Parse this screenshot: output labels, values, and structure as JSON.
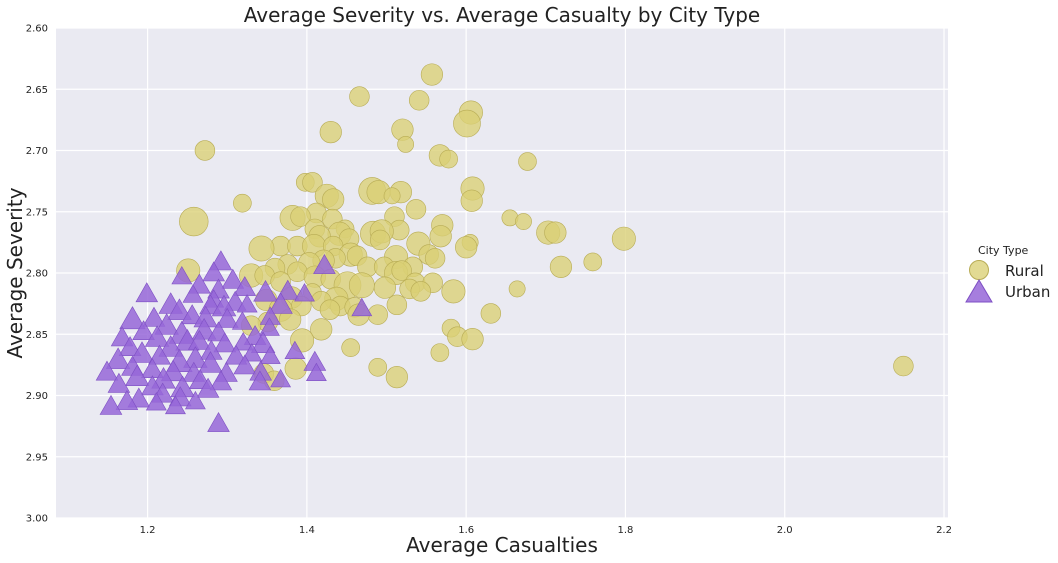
{
  "chart_data": {
    "type": "scatter",
    "title": "Average Severity vs. Average Casualty by City Type",
    "xlabel": "Average Casualties",
    "ylabel": "Average Severity",
    "xlim": [
      1.085,
      2.205
    ],
    "ylim": [
      2.6,
      3.0
    ],
    "y_inverted": true,
    "xticks": [
      1.2,
      1.4,
      1.6,
      1.8,
      2.0,
      2.2
    ],
    "xtick_labels": [
      "1.2",
      "1.4",
      "1.6",
      "1.8",
      "2.0",
      "2.2"
    ],
    "yticks": [
      2.6,
      2.65,
      2.7,
      2.75,
      2.8,
      2.85,
      2.9,
      2.95,
      3.0
    ],
    "ytick_labels": [
      "2.60",
      "2.65",
      "2.70",
      "2.75",
      "2.80",
      "2.85",
      "2.90",
      "2.95",
      "3.00"
    ],
    "grid": true,
    "background": "#eaeaf2",
    "legend": {
      "title": "City Type",
      "placement": "center-right"
    },
    "series": [
      {
        "name": "Rural",
        "marker": "circle",
        "color": "#dacf75",
        "edge_color": "#b8ac55",
        "points": [
          [
            1.557,
            2.638,
            2.4
          ],
          [
            1.466,
            2.656,
            2.2
          ],
          [
            1.541,
            2.659,
            2.2
          ],
          [
            1.606,
            2.669,
            2.6
          ],
          [
            1.601,
            2.678,
            3.0
          ],
          [
            1.43,
            2.685,
            2.4
          ],
          [
            1.52,
            2.683,
            2.4
          ],
          [
            1.524,
            2.695,
            1.8
          ],
          [
            1.272,
            2.7,
            2.2
          ],
          [
            1.567,
            2.704,
            2.4
          ],
          [
            1.578,
            2.707,
            2.0
          ],
          [
            1.677,
            2.709,
            2.0
          ],
          [
            1.398,
            2.726,
            2.0
          ],
          [
            1.407,
            2.726,
            2.2
          ],
          [
            1.608,
            2.731,
            2.6
          ],
          [
            1.482,
            2.733,
            3.0
          ],
          [
            1.49,
            2.734,
            2.6
          ],
          [
            1.518,
            2.734,
            2.4
          ],
          [
            1.425,
            2.737,
            2.6
          ],
          [
            1.433,
            2.74,
            2.4
          ],
          [
            1.507,
            2.737,
            1.8
          ],
          [
            1.607,
            2.741,
            2.4
          ],
          [
            1.319,
            2.743,
            2.0
          ],
          [
            1.537,
            2.748,
            2.2
          ],
          [
            1.412,
            2.751,
            2.2
          ],
          [
            1.382,
            2.755,
            2.8
          ],
          [
            1.392,
            2.754,
            2.2
          ],
          [
            1.432,
            2.756,
            2.2
          ],
          [
            1.51,
            2.754,
            2.2
          ],
          [
            1.655,
            2.755,
            1.8
          ],
          [
            1.258,
            2.758,
            3.2
          ],
          [
            1.672,
            2.758,
            1.8
          ],
          [
            1.57,
            2.761,
            2.4
          ],
          [
            1.41,
            2.764,
            2.2
          ],
          [
            1.448,
            2.764,
            2.0
          ],
          [
            1.516,
            2.765,
            2.2
          ],
          [
            1.483,
            2.768,
            2.8
          ],
          [
            1.494,
            2.766,
            2.6
          ],
          [
            1.703,
            2.767,
            2.6
          ],
          [
            1.712,
            2.767,
            2.4
          ],
          [
            1.441,
            2.768,
            2.6
          ],
          [
            1.416,
            2.77,
            2.4
          ],
          [
            1.568,
            2.77,
            2.4
          ],
          [
            1.453,
            2.772,
            2.2
          ],
          [
            1.492,
            2.773,
            2.2
          ],
          [
            1.798,
            2.772,
            2.6
          ],
          [
            1.605,
            2.775,
            1.8
          ],
          [
            1.367,
            2.778,
            2.2
          ],
          [
            1.388,
            2.778,
            2.2
          ],
          [
            1.409,
            2.778,
            2.6
          ],
          [
            1.433,
            2.778,
            2.2
          ],
          [
            1.54,
            2.776,
            2.6
          ],
          [
            1.6,
            2.779,
            2.4
          ],
          [
            1.343,
            2.78,
            2.8
          ],
          [
            1.553,
            2.785,
            2.2
          ],
          [
            1.561,
            2.788,
            2.2
          ],
          [
            1.512,
            2.787,
            2.6
          ],
          [
            1.455,
            2.785,
            2.6
          ],
          [
            1.463,
            2.786,
            2.2
          ],
          [
            1.436,
            2.788,
            2.2
          ],
          [
            1.421,
            2.79,
            2.4
          ],
          [
            1.403,
            2.792,
            2.4
          ],
          [
            1.376,
            2.793,
            2.2
          ],
          [
            1.36,
            2.796,
            2.2
          ],
          [
            1.476,
            2.795,
            2.2
          ],
          [
            1.497,
            2.795,
            2.2
          ],
          [
            1.533,
            2.795,
            2.2
          ],
          [
            1.719,
            2.795,
            2.4
          ],
          [
            1.759,
            2.791,
            2.0
          ],
          [
            1.251,
            2.798,
            2.6
          ],
          [
            1.388,
            2.799,
            2.2
          ],
          [
            1.512,
            2.8,
            2.6
          ],
          [
            1.519,
            2.798,
            2.2
          ],
          [
            1.33,
            2.802,
            2.6
          ],
          [
            1.347,
            2.802,
            2.2
          ],
          [
            1.41,
            2.803,
            2.4
          ],
          [
            1.43,
            2.805,
            2.2
          ],
          [
            1.367,
            2.807,
            2.2
          ],
          [
            1.536,
            2.808,
            2.2
          ],
          [
            1.558,
            2.808,
            2.2
          ],
          [
            1.451,
            2.81,
            3.0
          ],
          [
            1.469,
            2.81,
            2.8
          ],
          [
            1.498,
            2.812,
            2.4
          ],
          [
            1.529,
            2.813,
            2.2
          ],
          [
            1.584,
            2.815,
            2.6
          ],
          [
            1.543,
            2.815,
            2.2
          ],
          [
            1.664,
            2.813,
            1.8
          ],
          [
            1.407,
            2.816,
            2.0
          ],
          [
            1.381,
            2.82,
            2.4
          ],
          [
            1.437,
            2.821,
            2.6
          ],
          [
            1.349,
            2.822,
            2.4
          ],
          [
            1.418,
            2.823,
            2.2
          ],
          [
            1.442,
            2.827,
            2.2
          ],
          [
            1.393,
            2.827,
            2.2
          ],
          [
            1.46,
            2.828,
            2.2
          ],
          [
            1.513,
            2.826,
            2.2
          ],
          [
            1.367,
            2.83,
            2.6
          ],
          [
            1.429,
            2.83,
            2.2
          ],
          [
            1.489,
            2.834,
            2.2
          ],
          [
            1.465,
            2.834,
            2.4
          ],
          [
            1.631,
            2.833,
            2.2
          ],
          [
            1.379,
            2.838,
            2.4
          ],
          [
            1.351,
            2.84,
            2.2
          ],
          [
            1.33,
            2.843,
            2.2
          ],
          [
            1.418,
            2.846,
            2.4
          ],
          [
            1.581,
            2.845,
            2.0
          ],
          [
            1.589,
            2.852,
            2.2
          ],
          [
            1.608,
            2.854,
            2.4
          ],
          [
            1.394,
            2.855,
            2.6
          ],
          [
            1.455,
            2.861,
            2.0
          ],
          [
            1.567,
            2.865,
            2.0
          ],
          [
            1.386,
            2.878,
            2.4
          ],
          [
            1.489,
            2.877,
            2.0
          ],
          [
            1.513,
            2.885,
            2.4
          ],
          [
            1.346,
            2.882,
            2.2
          ],
          [
            1.359,
            2.888,
            2.2
          ],
          [
            2.149,
            2.876,
            2.2
          ]
        ]
      },
      {
        "name": "Urban",
        "marker": "triangle",
        "color": "#9767d8",
        "edge_color": "#7e4fc4",
        "points": [
          [
            1.292,
            2.791,
            2.4
          ],
          [
            1.422,
            2.794,
            2.4
          ],
          [
            1.283,
            2.8,
            2.4
          ],
          [
            1.243,
            2.803,
            2.2
          ],
          [
            1.307,
            2.806,
            2.4
          ],
          [
            1.265,
            2.81,
            2.4
          ],
          [
            1.199,
            2.817,
            2.4
          ],
          [
            1.289,
            2.814,
            2.4
          ],
          [
            1.322,
            2.812,
            2.4
          ],
          [
            1.348,
            2.816,
            2.6
          ],
          [
            1.376,
            2.815,
            2.4
          ],
          [
            1.397,
            2.817,
            2.2
          ],
          [
            1.257,
            2.818,
            2.2
          ],
          [
            1.229,
            2.826,
            2.6
          ],
          [
            1.283,
            2.822,
            2.2
          ],
          [
            1.31,
            2.824,
            2.4
          ],
          [
            1.24,
            2.831,
            2.6
          ],
          [
            1.279,
            2.827,
            2.4
          ],
          [
            1.296,
            2.828,
            2.6
          ],
          [
            1.325,
            2.826,
            2.2
          ],
          [
            1.367,
            2.826,
            2.6
          ],
          [
            1.354,
            2.836,
            2.2
          ],
          [
            1.469,
            2.829,
            2.2
          ],
          [
            1.181,
            2.838,
            2.8
          ],
          [
            1.208,
            2.837,
            2.4
          ],
          [
            1.256,
            2.835,
            2.4
          ],
          [
            1.273,
            2.837,
            2.6
          ],
          [
            1.3,
            2.838,
            2.4
          ],
          [
            1.319,
            2.84,
            2.2
          ],
          [
            1.353,
            2.845,
            2.2
          ],
          [
            1.224,
            2.843,
            2.6
          ],
          [
            1.271,
            2.847,
            2.6
          ],
          [
            1.289,
            2.849,
            2.4
          ],
          [
            1.243,
            2.85,
            2.8
          ],
          [
            1.195,
            2.848,
            2.4
          ],
          [
            1.335,
            2.852,
            2.4
          ],
          [
            1.168,
            2.853,
            2.4
          ],
          [
            1.212,
            2.853,
            2.6
          ],
          [
            1.25,
            2.856,
            2.6
          ],
          [
            1.265,
            2.856,
            2.4
          ],
          [
            1.297,
            2.858,
            2.4
          ],
          [
            1.32,
            2.857,
            2.2
          ],
          [
            1.345,
            2.858,
            2.6
          ],
          [
            1.178,
            2.861,
            2.4
          ],
          [
            1.229,
            2.861,
            2.6
          ],
          [
            1.28,
            2.864,
            2.4
          ],
          [
            1.193,
            2.866,
            2.6
          ],
          [
            1.215,
            2.868,
            2.4
          ],
          [
            1.26,
            2.87,
            2.6
          ],
          [
            1.311,
            2.868,
            2.4
          ],
          [
            1.331,
            2.866,
            2.2
          ],
          [
            1.354,
            2.868,
            2.2
          ],
          [
            1.385,
            2.864,
            2.2
          ],
          [
            1.163,
            2.871,
            2.6
          ],
          [
            1.24,
            2.873,
            2.8
          ],
          [
            1.279,
            2.874,
            2.6
          ],
          [
            1.322,
            2.876,
            2.4
          ],
          [
            1.181,
            2.877,
            2.4
          ],
          [
            1.41,
            2.873,
            2.4
          ],
          [
            1.206,
            2.879,
            2.4
          ],
          [
            1.232,
            2.881,
            2.6
          ],
          [
            1.258,
            2.882,
            2.4
          ],
          [
            1.299,
            2.882,
            2.4
          ],
          [
            1.342,
            2.881,
            2.4
          ],
          [
            1.149,
            2.881,
            2.4
          ],
          [
            1.412,
            2.882,
            2.2
          ],
          [
            1.187,
            2.885,
            2.6
          ],
          [
            1.22,
            2.887,
            2.6
          ],
          [
            1.266,
            2.888,
            2.4
          ],
          [
            1.292,
            2.889,
            2.4
          ],
          [
            1.341,
            2.889,
            2.4
          ],
          [
            1.367,
            2.887,
            2.2
          ],
          [
            1.164,
            2.891,
            2.4
          ],
          [
            1.206,
            2.893,
            2.4
          ],
          [
            1.244,
            2.894,
            2.6
          ],
          [
            1.276,
            2.895,
            2.4
          ],
          [
            1.219,
            2.899,
            2.4
          ],
          [
            1.189,
            2.903,
            2.4
          ],
          [
            1.241,
            2.902,
            2.4
          ],
          [
            1.174,
            2.905,
            2.4
          ],
          [
            1.211,
            2.906,
            2.2
          ],
          [
            1.154,
            2.909,
            2.4
          ],
          [
            1.26,
            2.905,
            2.2
          ],
          [
            1.235,
            2.909,
            2.2
          ],
          [
            1.289,
            2.923,
            2.4
          ]
        ]
      }
    ]
  }
}
